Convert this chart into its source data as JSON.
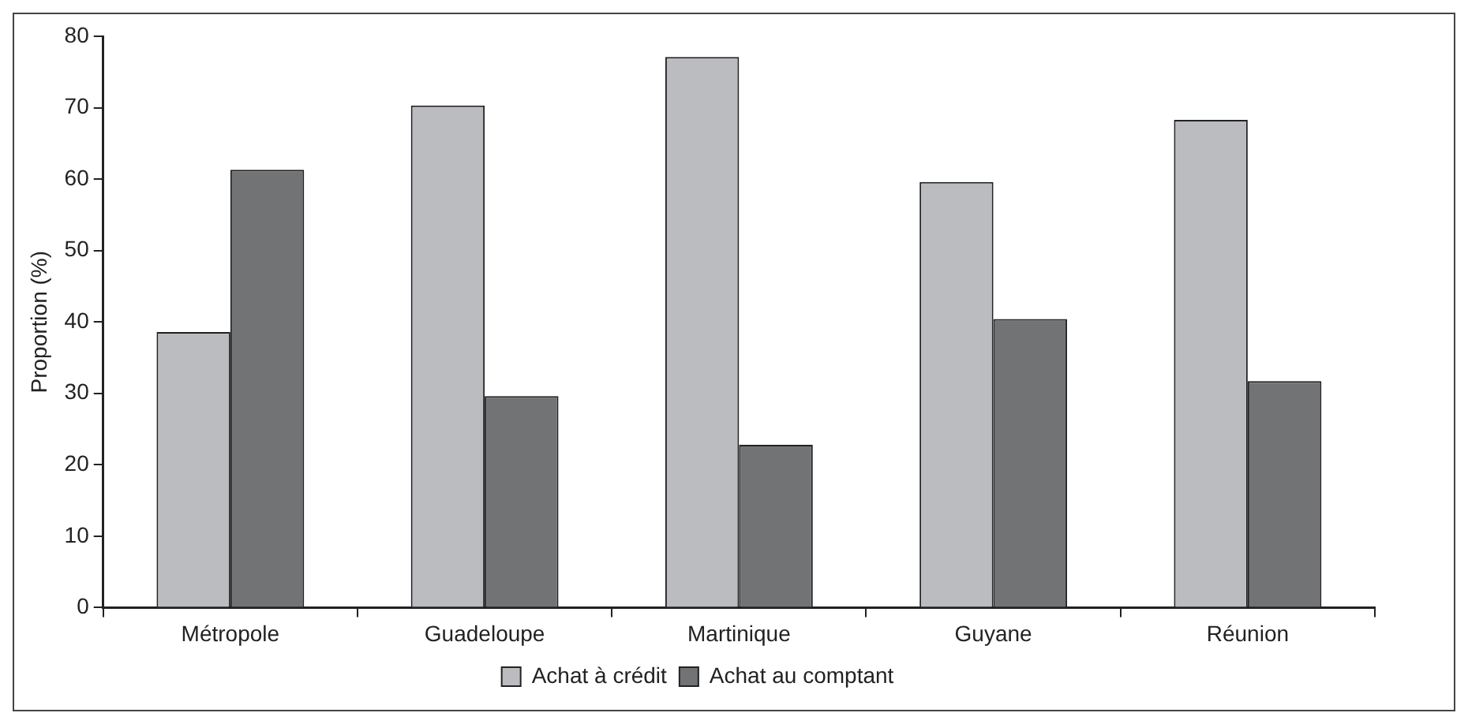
{
  "chart_data": {
    "type": "bar",
    "ylabel": "Proportion (%)",
    "categories": [
      "Métropole",
      "Guadeloupe",
      "Martinique",
      "Guyane",
      "Réunion"
    ],
    "series": [
      {
        "name": "Achat à crédit",
        "color": "#bbbcc0",
        "values": [
          38.6,
          70.3,
          77.1,
          59.6,
          68.3
        ]
      },
      {
        "name": "Achat au comptant",
        "color": "#727375",
        "values": [
          61.3,
          29.6,
          22.8,
          40.4,
          31.7
        ]
      }
    ],
    "ylim": [
      0,
      80
    ],
    "yticks": [
      0,
      10,
      20,
      30,
      40,
      50,
      60,
      70,
      80
    ],
    "grid": false,
    "legend": "bottom"
  }
}
